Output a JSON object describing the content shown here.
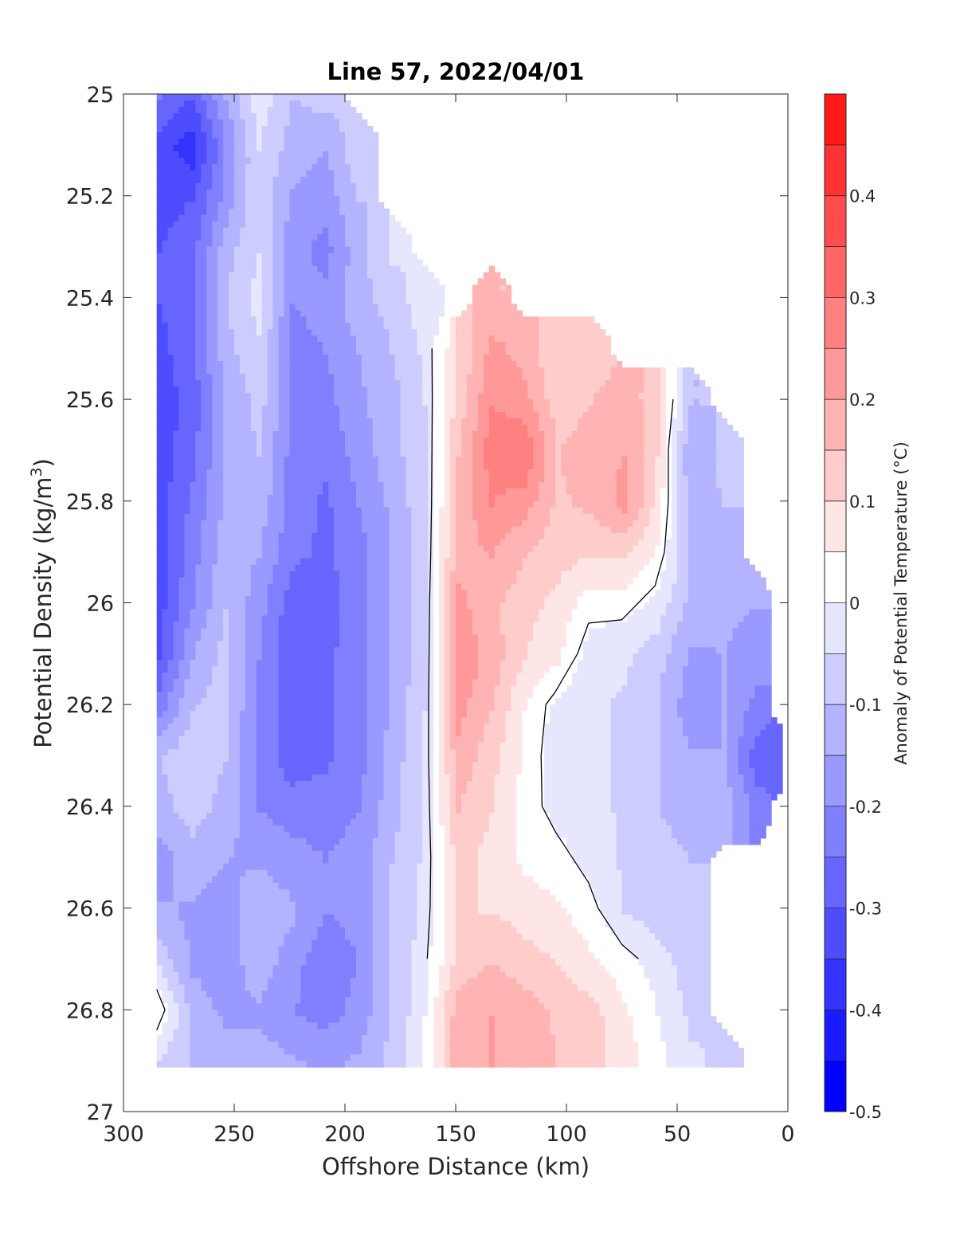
{
  "chart_data": {
    "type": "heatmap",
    "title": "Line 57, 2022/04/01",
    "xlabel": "Offshore Distance (km)",
    "ylabel": "Potential Density (kg/m^3)",
    "ylabel_main": "Potential Density (kg/m",
    "ylabel_sup": "3",
    "ylabel_tail": ")",
    "xlim": [
      300,
      0
    ],
    "ylim": [
      25,
      27
    ],
    "x_reversed": true,
    "y_reversed": true,
    "xticks": [
      "300",
      "250",
      "200",
      "150",
      "100",
      "50",
      "0"
    ],
    "yticks": [
      "25",
      "25.2",
      "25.4",
      "25.6",
      "25.8",
      "26",
      "26.2",
      "26.4",
      "26.6",
      "26.8",
      "27"
    ],
    "grid": false,
    "colorbar": {
      "label": "Anomaly of Potential Temperature (°C)",
      "range": [
        -0.5,
        0.5
      ],
      "step": 0.05,
      "ticks": [
        "0.4",
        "0.3",
        "0.2",
        "0.1",
        "0",
        "-0.1",
        "-0.2",
        "-0.3",
        "-0.4",
        "-0.5"
      ],
      "colors": [
        "#0000ff",
        "#1a1aff",
        "#3333ff",
        "#4d4dff",
        "#6666ff",
        "#8080ff",
        "#9999ff",
        "#b3b3ff",
        "#ccccff",
        "#e6e6ff",
        "#ffffff",
        "#ffe6e6",
        "#ffcccc",
        "#ffb3b3",
        "#ff9999",
        "#ff8080",
        "#ff6666",
        "#ff4d4d",
        "#ff3333",
        "#ff1a1a"
      ]
    },
    "contour_level": 0,
    "x": [
      285,
      270,
      255,
      240,
      225,
      210,
      195,
      180,
      165,
      150,
      135,
      120,
      105,
      90,
      75,
      60,
      45,
      30,
      15,
      5
    ],
    "y": [
      25.0,
      25.1,
      25.2,
      25.3,
      25.4,
      25.5,
      25.6,
      25.7,
      25.8,
      25.9,
      26.0,
      26.1,
      26.2,
      26.3,
      26.4,
      26.5,
      26.6,
      26.7,
      26.8,
      26.9
    ],
    "z": [
      [
        -0.25,
        -0.3,
        -0.15,
        -0.02,
        -0.1,
        -0.08,
        null,
        null,
        null,
        null,
        null,
        null,
        null,
        null,
        null,
        null,
        null,
        null,
        null,
        null
      ],
      [
        -0.33,
        -0.38,
        -0.2,
        -0.05,
        -0.12,
        -0.15,
        -0.06,
        null,
        null,
        null,
        null,
        null,
        null,
        null,
        null,
        null,
        null,
        null,
        null,
        null
      ],
      [
        -0.32,
        -0.3,
        -0.18,
        -0.06,
        -0.16,
        -0.18,
        -0.1,
        null,
        null,
        null,
        null,
        null,
        null,
        null,
        null,
        null,
        null,
        null,
        null,
        null
      ],
      [
        -0.3,
        -0.27,
        -0.12,
        -0.05,
        -0.18,
        -0.22,
        -0.12,
        -0.04,
        null,
        null,
        null,
        null,
        null,
        null,
        null,
        null,
        null,
        null,
        null,
        null
      ],
      [
        -0.3,
        -0.25,
        -0.1,
        -0.03,
        -0.2,
        -0.18,
        -0.12,
        -0.08,
        -0.02,
        null,
        0.15,
        null,
        null,
        null,
        null,
        null,
        null,
        null,
        null,
        null
      ],
      [
        -0.32,
        -0.26,
        -0.12,
        -0.06,
        -0.22,
        -0.2,
        -0.15,
        -0.1,
        -0.04,
        0.1,
        0.22,
        0.18,
        0.1,
        0.12,
        null,
        null,
        null,
        null,
        null,
        null
      ],
      [
        -0.33,
        -0.28,
        -0.15,
        -0.08,
        -0.2,
        -0.22,
        -0.16,
        -0.12,
        -0.05,
        0.12,
        0.25,
        0.22,
        0.12,
        0.15,
        0.18,
        0.12,
        -0.1,
        null,
        null,
        null
      ],
      [
        -0.33,
        -0.26,
        -0.15,
        -0.1,
        -0.22,
        -0.24,
        -0.18,
        -0.12,
        -0.06,
        0.15,
        0.28,
        0.3,
        0.15,
        0.18,
        0.2,
        0.1,
        -0.15,
        -0.08,
        null,
        null
      ],
      [
        -0.32,
        -0.24,
        -0.14,
        -0.12,
        -0.22,
        -0.26,
        -0.2,
        -0.14,
        -0.06,
        0.16,
        0.25,
        0.22,
        0.14,
        0.16,
        0.22,
        0.08,
        -0.12,
        -0.1,
        null,
        null
      ],
      [
        -0.33,
        -0.22,
        -0.12,
        -0.15,
        -0.24,
        -0.26,
        -0.22,
        -0.15,
        -0.06,
        0.18,
        0.2,
        0.15,
        0.12,
        0.1,
        0.1,
        0.04,
        -0.1,
        -0.12,
        null,
        null
      ],
      [
        -0.32,
        -0.2,
        -0.1,
        -0.18,
        -0.28,
        -0.28,
        -0.22,
        -0.15,
        -0.06,
        0.22,
        0.16,
        0.12,
        0.08,
        0.02,
        0.02,
        -0.02,
        -0.12,
        -0.14,
        -0.15,
        null
      ],
      [
        -0.3,
        -0.15,
        -0.08,
        -0.2,
        -0.3,
        -0.26,
        -0.22,
        -0.15,
        -0.06,
        0.24,
        0.18,
        0.1,
        0.06,
        -0.03,
        -0.04,
        -0.08,
        -0.16,
        -0.15,
        -0.18,
        null
      ],
      [
        -0.22,
        -0.1,
        -0.08,
        -0.22,
        -0.28,
        -0.26,
        -0.22,
        -0.14,
        -0.05,
        0.22,
        0.15,
        0.05,
        -0.02,
        -0.04,
        -0.06,
        -0.1,
        -0.18,
        -0.15,
        -0.22,
        null
      ],
      [
        -0.1,
        -0.06,
        -0.1,
        -0.22,
        -0.28,
        -0.26,
        -0.22,
        -0.13,
        -0.04,
        0.18,
        0.12,
        0.04,
        -0.03,
        -0.04,
        -0.06,
        -0.1,
        -0.14,
        -0.15,
        -0.28,
        -0.3
      ],
      [
        -0.12,
        -0.08,
        -0.12,
        -0.2,
        -0.22,
        -0.22,
        -0.2,
        -0.12,
        -0.04,
        0.15,
        0.1,
        0.03,
        -0.02,
        -0.03,
        -0.06,
        -0.1,
        -0.12,
        -0.12,
        -0.22,
        null
      ],
      [
        -0.18,
        -0.12,
        -0.15,
        -0.16,
        -0.18,
        -0.2,
        -0.18,
        -0.1,
        -0.04,
        0.12,
        0.08,
        0.04,
        0.02,
        -0.02,
        -0.06,
        -0.08,
        -0.1,
        null,
        null,
        null
      ],
      [
        -0.14,
        -0.16,
        -0.18,
        -0.1,
        -0.14,
        -0.2,
        -0.18,
        -0.1,
        -0.03,
        0.1,
        0.1,
        0.08,
        0.06,
        0.02,
        -0.05,
        -0.08,
        -0.1,
        null,
        null,
        null
      ],
      [
        -0.06,
        -0.16,
        -0.18,
        -0.12,
        -0.18,
        -0.24,
        -0.2,
        -0.1,
        -0.02,
        0.12,
        0.15,
        0.12,
        0.1,
        0.06,
        0.02,
        -0.02,
        -0.08,
        null,
        null,
        null
      ],
      [
        0.04,
        -0.12,
        -0.16,
        -0.16,
        -0.2,
        -0.22,
        -0.18,
        -0.1,
        0.0,
        0.18,
        0.2,
        0.18,
        0.14,
        0.12,
        0.06,
        0.0,
        -0.06,
        null,
        null,
        null
      ],
      [
        -0.06,
        -0.1,
        -0.12,
        -0.12,
        -0.14,
        -0.16,
        -0.14,
        -0.08,
        0.0,
        0.18,
        0.2,
        0.18,
        0.15,
        0.12,
        0.08,
        0.02,
        -0.04,
        -0.06,
        null,
        null
      ]
    ]
  }
}
